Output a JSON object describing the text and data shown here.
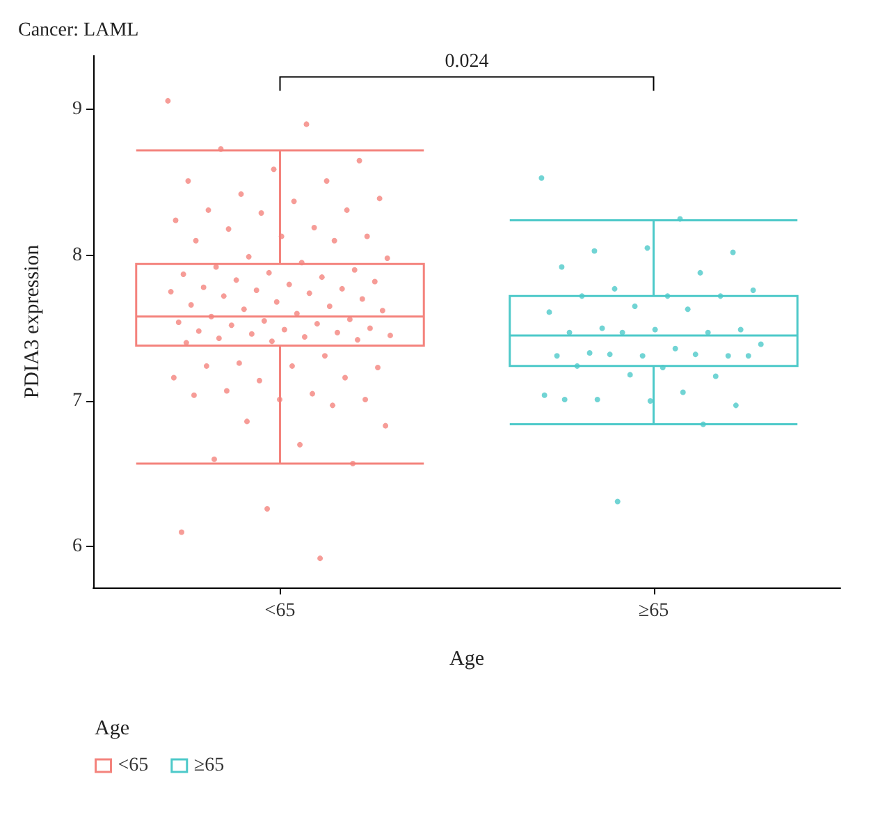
{
  "chart_data": {
    "type": "box",
    "title": "Cancer: LAML",
    "xlabel": "Age",
    "ylabel": "PDIA3 expression",
    "legend_title": "Age",
    "categories": [
      "<65",
      "≥65"
    ],
    "ylim": [
      5.72,
      9.37
    ],
    "yticks": [
      6,
      7,
      8,
      9
    ],
    "grid": false,
    "legend": "bottom left",
    "annotations": [
      "0.024"
    ],
    "series": [
      {
        "name": "<65",
        "color": "#f4837d",
        "boxes": [
          {
            "low": 6.57,
            "q1": 7.38,
            "median": 7.58,
            "q3": 7.94,
            "high": 8.72
          },
          null
        ]
      },
      {
        "name": "≥65",
        "color": "#4dc9c9",
        "boxes": [
          null,
          {
            "low": 6.84,
            "q1": 7.24,
            "median": 7.45,
            "q3": 7.72,
            "high": 8.24
          }
        ]
      },
      {
        "type": "scatter",
        "color": "#f4837d",
        "x": [
          "<65",
          "<65",
          "<65",
          "<65",
          "<65",
          "<65",
          "<65",
          "<65",
          "<65",
          "<65",
          "<65",
          "<65",
          "<65",
          "<65",
          "<65",
          "<65",
          "<65",
          "<65",
          "<65",
          "<65",
          "<65",
          "<65",
          "<65",
          "<65",
          "<65",
          "<65",
          "<65",
          "<65",
          "<65",
          "<65",
          "<65",
          "<65",
          "<65",
          "<65",
          "<65",
          "<65",
          "<65",
          "<65",
          "<65",
          "<65",
          "<65",
          "<65",
          "<65",
          "<65",
          "<65",
          "<65",
          "<65",
          "<65",
          "<65",
          "<65",
          "<65",
          "<65",
          "<65",
          "<65",
          "<65",
          "<65",
          "<65",
          "<65",
          "<65",
          "<65",
          "<65",
          "<65",
          "<65",
          "<65",
          "<65",
          "<65",
          "<65",
          "<65",
          "<65",
          "<65",
          "<65",
          "<65",
          "<65",
          "<65",
          "<65",
          "<65",
          "<65",
          "<65",
          "<65",
          "<65",
          "<65",
          "<65",
          "<65"
        ],
        "values": [
          9.06,
          8.9,
          8.73,
          8.65,
          8.59,
          8.51,
          8.51,
          8.42,
          8.39,
          8.37,
          8.31,
          8.31,
          8.29,
          8.24,
          8.19,
          8.18,
          8.13,
          8.13,
          8.1,
          8.1,
          7.99,
          7.98,
          7.95,
          7.92,
          7.9,
          7.88,
          7.87,
          7.85,
          7.83,
          7.82,
          7.8,
          7.78,
          7.77,
          7.76,
          7.75,
          7.74,
          7.72,
          7.7,
          7.68,
          7.66,
          7.65,
          7.63,
          7.62,
          7.6,
          7.58,
          7.56,
          7.55,
          7.54,
          7.53,
          7.52,
          7.5,
          7.49,
          7.48,
          7.47,
          7.46,
          7.45,
          7.44,
          7.43,
          7.42,
          7.41,
          7.4,
          7.31,
          7.26,
          7.23,
          7.24,
          7.24,
          7.16,
          7.14,
          7.16,
          7.05,
          7.07,
          7.01,
          7.01,
          7.04,
          6.97,
          6.86,
          6.83,
          6.7,
          6.6,
          6.57,
          6.26,
          6.1,
          5.92
        ]
      },
      {
        "type": "scatter",
        "color": "#4dc9c9",
        "x": [
          "≥65",
          "≥65",
          "≥65",
          "≥65",
          "≥65",
          "≥65",
          "≥65",
          "≥65",
          "≥65",
          "≥65",
          "≥65",
          "≥65",
          "≥65",
          "≥65",
          "≥65",
          "≥65",
          "≥65",
          "≥65",
          "≥65",
          "≥65",
          "≥65",
          "≥65",
          "≥65",
          "≥65",
          "≥65",
          "≥65",
          "≥65",
          "≥65",
          "≥65",
          "≥65",
          "≥65",
          "≥65",
          "≥65",
          "≥65",
          "≥65",
          "≥65",
          "≥65",
          "≥65",
          "≥65",
          "≥65",
          "≥65",
          "≥65"
        ],
        "values": [
          8.53,
          8.25,
          8.03,
          8.02,
          8.05,
          7.92,
          7.88,
          7.77,
          7.76,
          7.72,
          7.72,
          7.72,
          7.65,
          7.61,
          7.63,
          7.5,
          7.49,
          7.49,
          7.47,
          7.47,
          7.47,
          7.39,
          7.36,
          7.33,
          7.31,
          7.31,
          7.31,
          7.32,
          7.32,
          7.31,
          7.23,
          7.24,
          7.17,
          7.18,
          7.04,
          7.06,
          7.01,
          6.97,
          7.0,
          7.01,
          6.84,
          6.31
        ]
      }
    ]
  }
}
